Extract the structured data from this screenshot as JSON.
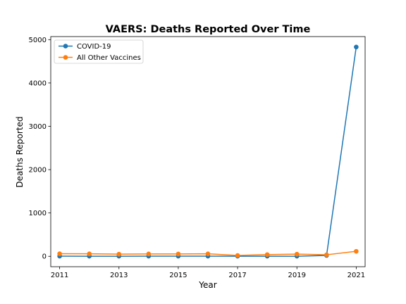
{
  "chart_data": {
    "type": "line",
    "title": "VAERS: Deaths Reported Over Time",
    "xlabel": "Year",
    "ylabel": "Deaths Reported",
    "x": [
      2011,
      2012,
      2013,
      2014,
      2015,
      2016,
      2017,
      2018,
      2019,
      2020,
      2021
    ],
    "xlim": [
      2010.7,
      2021.3
    ],
    "ylim": [
      -240,
      5070
    ],
    "xticks": [
      2011,
      2013,
      2015,
      2017,
      2019,
      2021
    ],
    "yticks": [
      0,
      1000,
      2000,
      3000,
      4000,
      5000
    ],
    "grid": false,
    "legend_position": "upper-left",
    "series": [
      {
        "name": "COVID-19",
        "color": "#1f77b4",
        "marker": "circle",
        "values": [
          3,
          2,
          2,
          3,
          3,
          3,
          2,
          2,
          2,
          20,
          4830
        ]
      },
      {
        "name": "All Other Vaccines",
        "color": "#ff7f0e",
        "marker": "circle",
        "values": [
          60,
          58,
          50,
          55,
          54,
          58,
          20,
          40,
          50,
          35,
          115
        ]
      }
    ]
  }
}
